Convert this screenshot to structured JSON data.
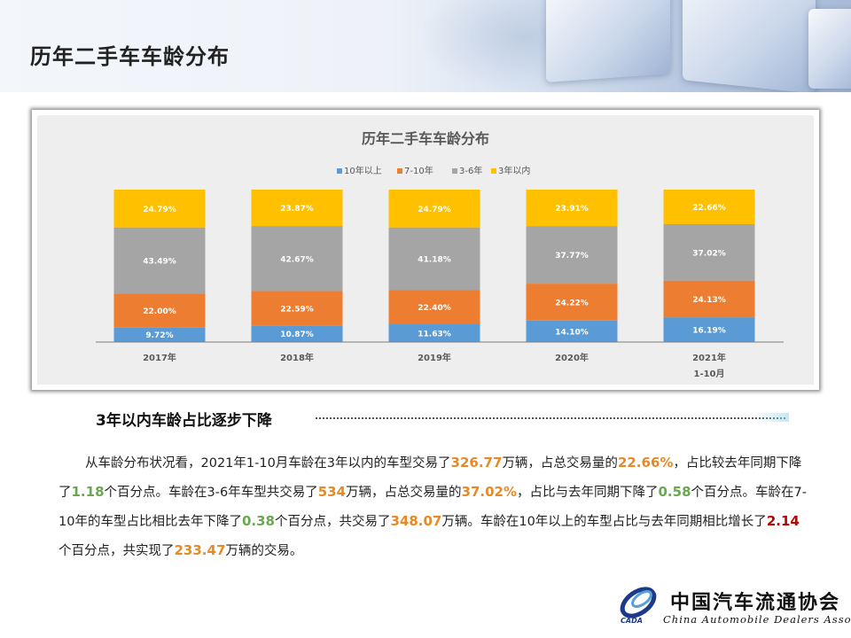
{
  "page": {
    "title": "历年二手车车龄分布"
  },
  "colors": {
    "over10": "#5b9bd5",
    "y7to10": "#ed7d31",
    "y3to6": "#a5a5a5",
    "within3": "#ffc000",
    "text_orange": "#e78a26",
    "text_green": "#6aa84f",
    "text_red": "#c00000"
  },
  "chart_data": {
    "type": "bar",
    "stacked": true,
    "percent_stacked": true,
    "title": "历年二手车车龄分布",
    "legend_position": "top",
    "categories": [
      "2017年",
      "2018年",
      "2019年",
      "2020年",
      "2021年\n1-10月"
    ],
    "category_lines": [
      [
        "2017年"
      ],
      [
        "2018年"
      ],
      [
        "2019年"
      ],
      [
        "2020年"
      ],
      [
        "2021年",
        "1-10月"
      ]
    ],
    "series": [
      {
        "name": "10年以上",
        "values": [
          9.72,
          10.87,
          11.63,
          14.1,
          16.19
        ],
        "labels": [
          "9.72%",
          "10.87%",
          "11.63%",
          "14.10%",
          "16.19%"
        ]
      },
      {
        "name": "7-10年",
        "values": [
          22.0,
          22.59,
          22.4,
          24.22,
          24.13
        ],
        "labels": [
          "22.00%",
          "22.59%",
          "22.40%",
          "24.22%",
          "24.13%"
        ]
      },
      {
        "name": "3-6年",
        "values": [
          43.49,
          42.67,
          41.18,
          37.77,
          37.02
        ],
        "labels": [
          "43.49%",
          "42.67%",
          "41.18%",
          "37.77%",
          "37.02%"
        ]
      },
      {
        "name": "3年以内",
        "values": [
          24.79,
          23.87,
          24.79,
          23.91,
          22.66
        ],
        "labels": [
          "24.79%",
          "23.87%",
          "24.79%",
          "23.91%",
          "22.66%"
        ]
      }
    ],
    "ylim": [
      0,
      100
    ],
    "grid": false
  },
  "section": {
    "heading": "3年以内车龄占比逐步下降"
  },
  "paragraph": {
    "p1": "从车龄分布状况看，2021年1-10月车龄在3年以内的车型交易了",
    "v1": "326.77",
    "p2": "万辆，占总交易量的",
    "v2": "22.66%",
    "p3": "，占比较去年同期下降了",
    "v3": "1.18",
    "p4": "个百分点。车龄在3-6年车型共交易了",
    "v4": "534",
    "p5": "万辆，占总交易量的",
    "v5": "37.02%",
    "p6": "，占比与去年同期下降了",
    "v6": "0.58",
    "p7": "个百分点。车龄在7-10年的车型占比相比去年下降了",
    "v7": "0.38",
    "p8": "个百分点，共交易了",
    "v8": "348.07",
    "p9": "万辆。车龄在10年以上的车型占比与去年同期相比增长了",
    "v9": "2.14",
    "p10": "个百分点，共实现了",
    "v10": "233.47",
    "p11": "万辆的交易。"
  },
  "logo": {
    "name_cn": "中国汽车流通协会",
    "name_en": "China Automobile Dealers Association",
    "abbr": "CADA"
  }
}
